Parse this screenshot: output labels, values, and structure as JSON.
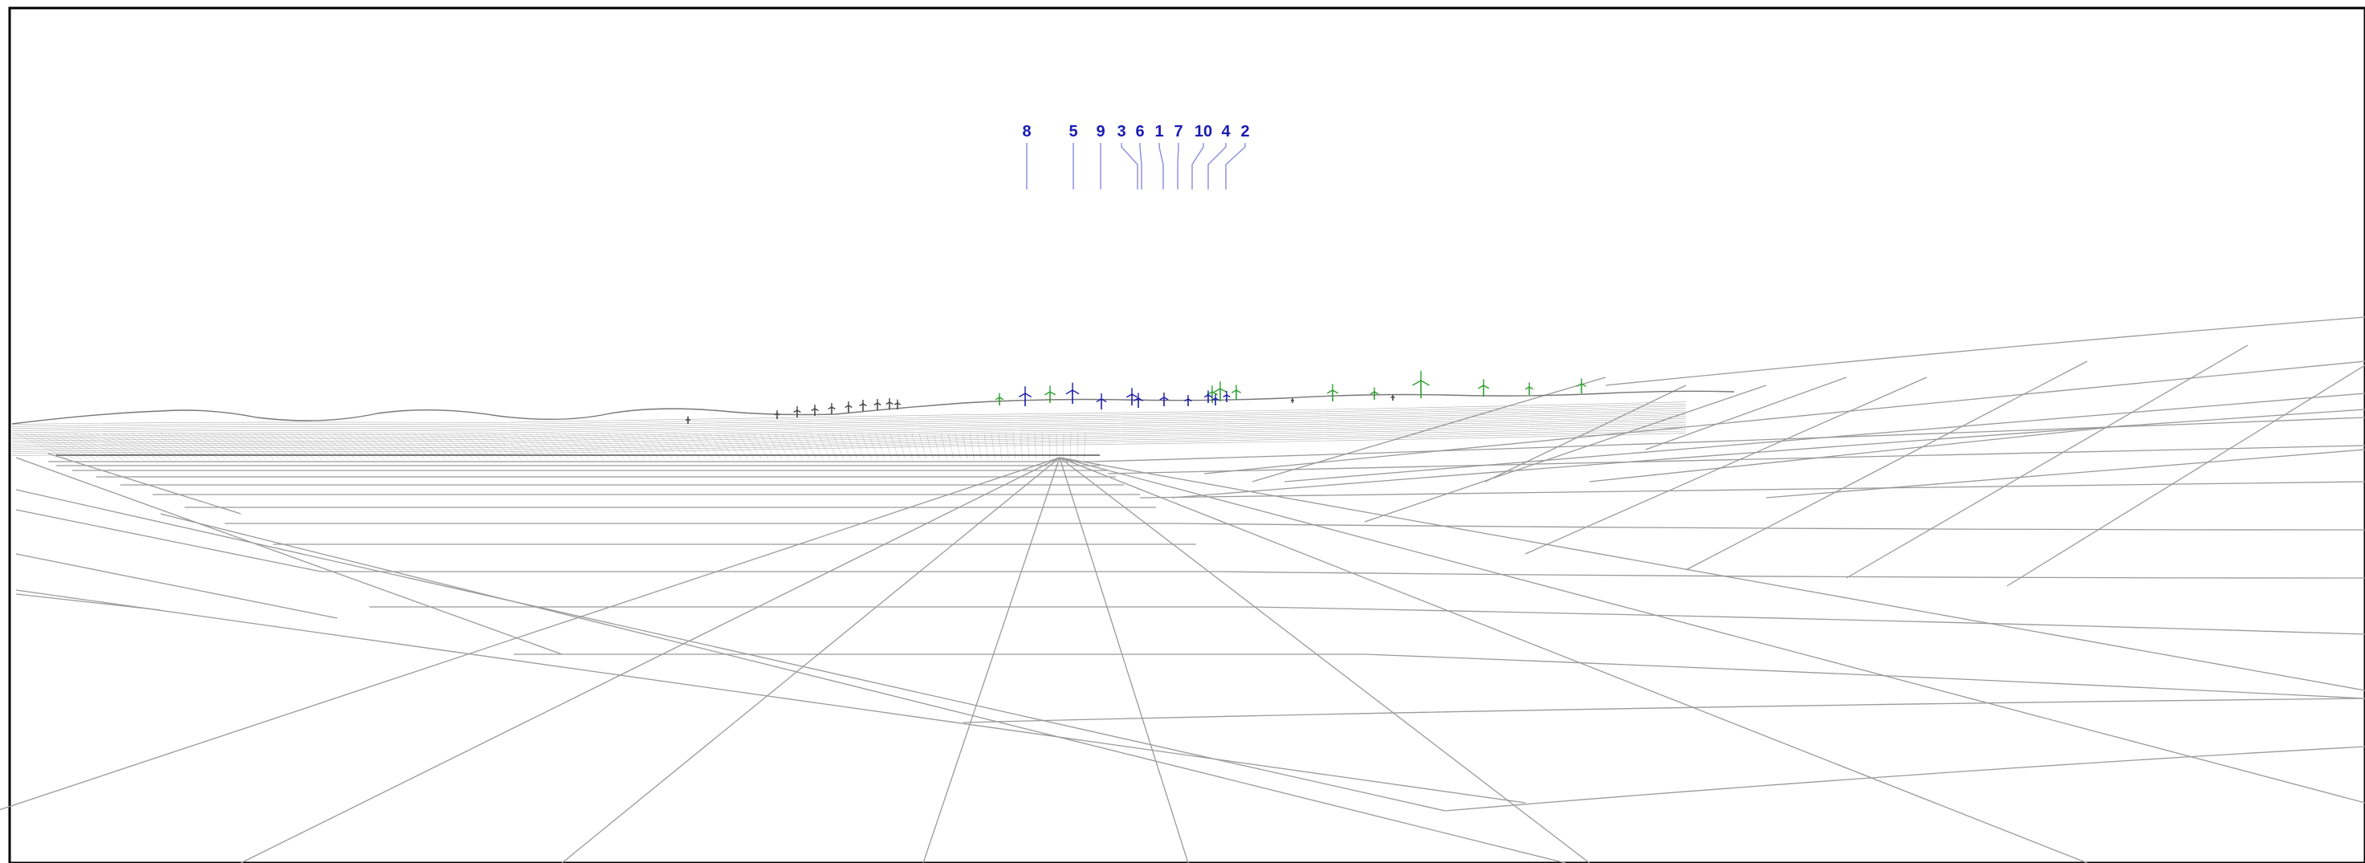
{
  "visualisation": {
    "turbine_labels": [
      "8",
      "5",
      "9",
      "3",
      "6",
      "1",
      "7",
      "10",
      "4",
      "2"
    ],
    "colors": {
      "background": "#ffffff",
      "frame": "#000000",
      "wireframe": "#9a9a9a",
      "proposed_turbines": "#1a1aa8",
      "label_text": "#1a1ab4",
      "other_turbines_green": "#2e9e2e",
      "other_turbines_dark": "#444444"
    },
    "icons": {
      "proposed": "wind-turbine-blue-icon",
      "cumulative": "wind-turbine-green-icon",
      "distant": "wind-turbine-dark-icon"
    }
  }
}
